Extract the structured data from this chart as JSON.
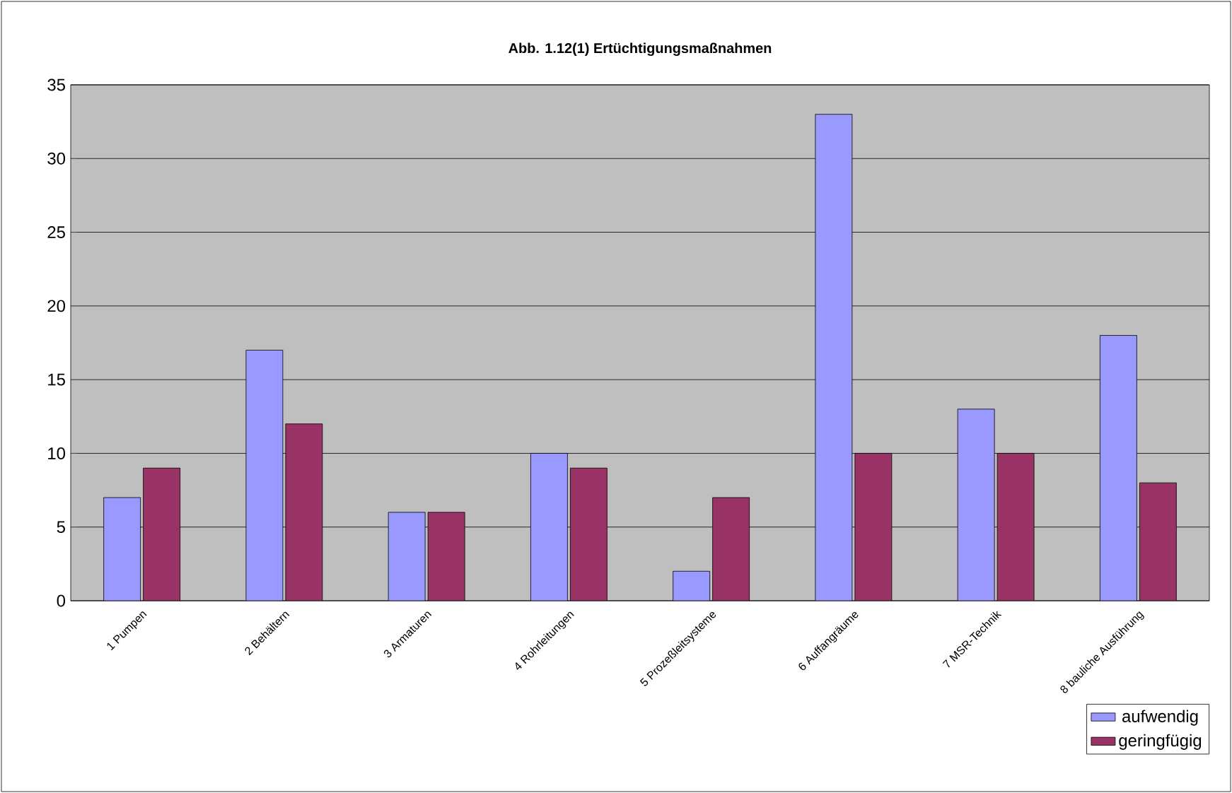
{
  "chart_data": {
    "type": "bar",
    "title": "Abb. 1.12(1) Ertüchtigungsmaßnahmen",
    "categories": [
      "1 Pumpen",
      "2 Behältern",
      "3 Armaturen",
      "4 Rohrleitungen",
      "5 Prozeßleitsysteme",
      "6 Auffangräume",
      "7 MSR-Technik",
      "8 bauliche Ausführung"
    ],
    "series": [
      {
        "name": "aufwendig",
        "color": "#9999ff",
        "values": [
          7,
          17,
          6,
          10,
          2,
          33,
          13,
          18
        ]
      },
      {
        "name": "geringfügig",
        "color": "#993366",
        "values": [
          9,
          12,
          6,
          9,
          7,
          10,
          10,
          8
        ]
      }
    ],
    "ylim": [
      0,
      35
    ],
    "yticks": [
      0,
      5,
      10,
      15,
      20,
      25,
      30,
      35
    ],
    "grid": "y",
    "legend": "bottom right"
  }
}
